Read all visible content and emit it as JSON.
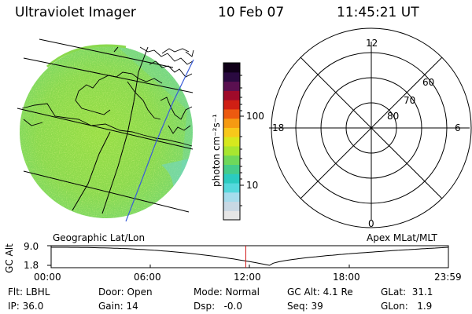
{
  "header": {
    "instrument": "Ultraviolet Imager",
    "date": "10 Feb 07",
    "time": "11:45:21 UT"
  },
  "image_panel": {
    "caption": "Geographic Lat/Lon"
  },
  "colorbar": {
    "unit_label": "photon cm⁻²s⁻¹",
    "tick_100": "100",
    "tick_10": "10",
    "colors": [
      "#e6e6e6",
      "#c8d8e4",
      "#a6dcec",
      "#55d8dc",
      "#2bcbc0",
      "#45cc8a",
      "#6fd85a",
      "#a8e630",
      "#d6e81e",
      "#f7c81a",
      "#f59a12",
      "#ec5a10",
      "#cf1f14",
      "#a00a2a",
      "#5a1050",
      "#2a0a40",
      "#100018"
    ]
  },
  "polar_panel": {
    "caption": "Apex MLat/MLT",
    "mlt_labels": {
      "top": "12",
      "left": "18",
      "right": "6",
      "bottom": "0"
    },
    "lat_labels": [
      "60",
      "70",
      "80"
    ]
  },
  "timeline": {
    "ylabel": "GC Alt",
    "y_max": "9.0",
    "y_min": "1.8",
    "x_labels": [
      "00:00",
      "06:00",
      "12:00",
      "18:00",
      "23:59"
    ],
    "current_marker_hour": 11.76
  },
  "status": {
    "filter": "Flt: LBHL",
    "door": "Door: Open",
    "mode": "Mode: Normal",
    "gc_alt": "GC Alt: 4.1 Re",
    "glat": "GLat:  31.1",
    "ip": "IP: 36.0",
    "gain": "Gain: 14",
    "dsp": "Dsp:   -0.0",
    "seq": "Seq: 39",
    "glon": "GLon:   1.9"
  }
}
